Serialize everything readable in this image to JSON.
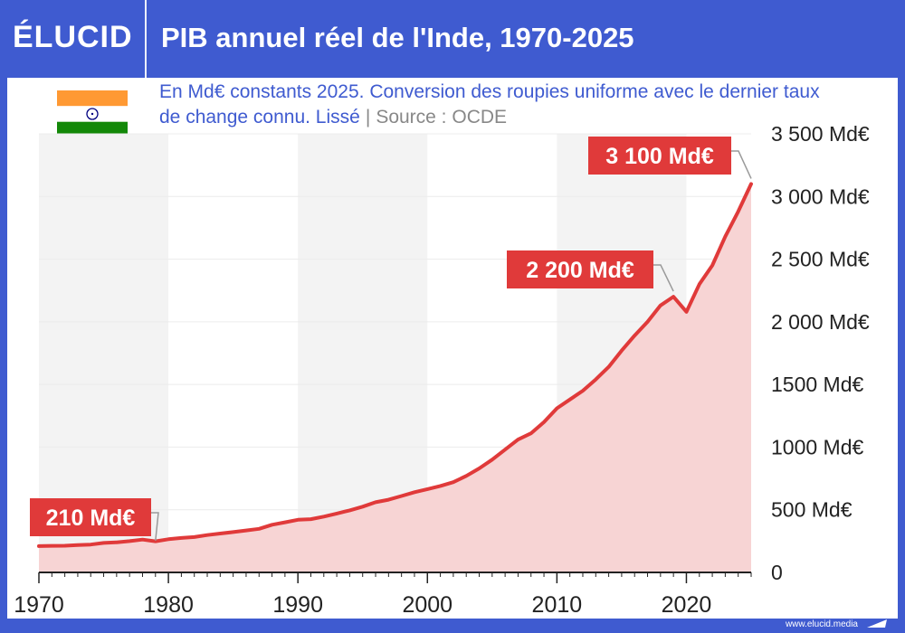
{
  "header": {
    "logo": "ÉLUCID",
    "title": "PIB annuel réel de l'Inde, 1970-2025"
  },
  "subtitle": {
    "line": "En Md€ constants 2025. Conversion des roupies uniforme avec le dernier taux de change connu. Lissé",
    "separator": "|",
    "source": "Source : OCDE"
  },
  "footer": {
    "url": "www.elucid.media"
  },
  "colors": {
    "brand_blue": "#3f5bd0",
    "series_red": "#e03a3a",
    "area_fill": "#f7d4d4",
    "band": "#f3f3f3"
  },
  "flag": {
    "icon": "india-flag-icon"
  },
  "chart_data": {
    "type": "area",
    "title": "PIB annuel réel de l'Inde, 1970-2025",
    "xlabel": "",
    "ylabel": "",
    "xlim": [
      1970,
      2025
    ],
    "ylim": [
      0,
      3500
    ],
    "x_ticks": [
      "1970",
      "1980",
      "1990",
      "2000",
      "2010",
      "2020"
    ],
    "y_ticks": [
      "0",
      "500 Md€",
      "1000 Md€",
      "1500 Md€",
      "2 000 Md€",
      "2 500 Md€",
      "3 000 Md€",
      "3 500 Md€"
    ],
    "y_tick_values": [
      0,
      500,
      1000,
      1500,
      2000,
      2500,
      3000,
      3500
    ],
    "grid": false,
    "series": [
      {
        "x": [
          1970,
          1971,
          1972,
          1973,
          1974,
          1975,
          1976,
          1977,
          1978,
          1979,
          1980,
          1981,
          1982,
          1983,
          1984,
          1985,
          1986,
          1987,
          1988,
          1989,
          1990,
          1991,
          1992,
          1993,
          1994,
          1995,
          1996,
          1997,
          1998,
          1999,
          2000,
          2001,
          2002,
          2003,
          2004,
          2005,
          2006,
          2007,
          2008,
          2009,
          2010,
          2011,
          2012,
          2013,
          2014,
          2015,
          2016,
          2017,
          2018,
          2019,
          2020,
          2021,
          2022,
          2023,
          2024,
          2025
        ],
        "values": [
          210,
          212,
          213,
          218,
          222,
          235,
          240,
          250,
          262,
          248,
          265,
          275,
          282,
          298,
          310,
          322,
          335,
          348,
          380,
          400,
          420,
          425,
          445,
          470,
          495,
          525,
          560,
          580,
          610,
          640,
          665,
          690,
          720,
          770,
          830,
          900,
          980,
          1060,
          1110,
          1200,
          1310,
          1380,
          1450,
          1540,
          1640,
          1770,
          1890,
          2000,
          2130,
          2200,
          2080,
          2300,
          2450,
          2680,
          2880,
          3100
        ]
      }
    ],
    "annotations": [
      {
        "x": 1979,
        "y": 210,
        "label": "210 Md€"
      },
      {
        "x": 2019,
        "y": 2200,
        "label": "2 200 Md€"
      },
      {
        "x": 2025,
        "y": 3100,
        "label": "3 100 Md€"
      }
    ]
  }
}
